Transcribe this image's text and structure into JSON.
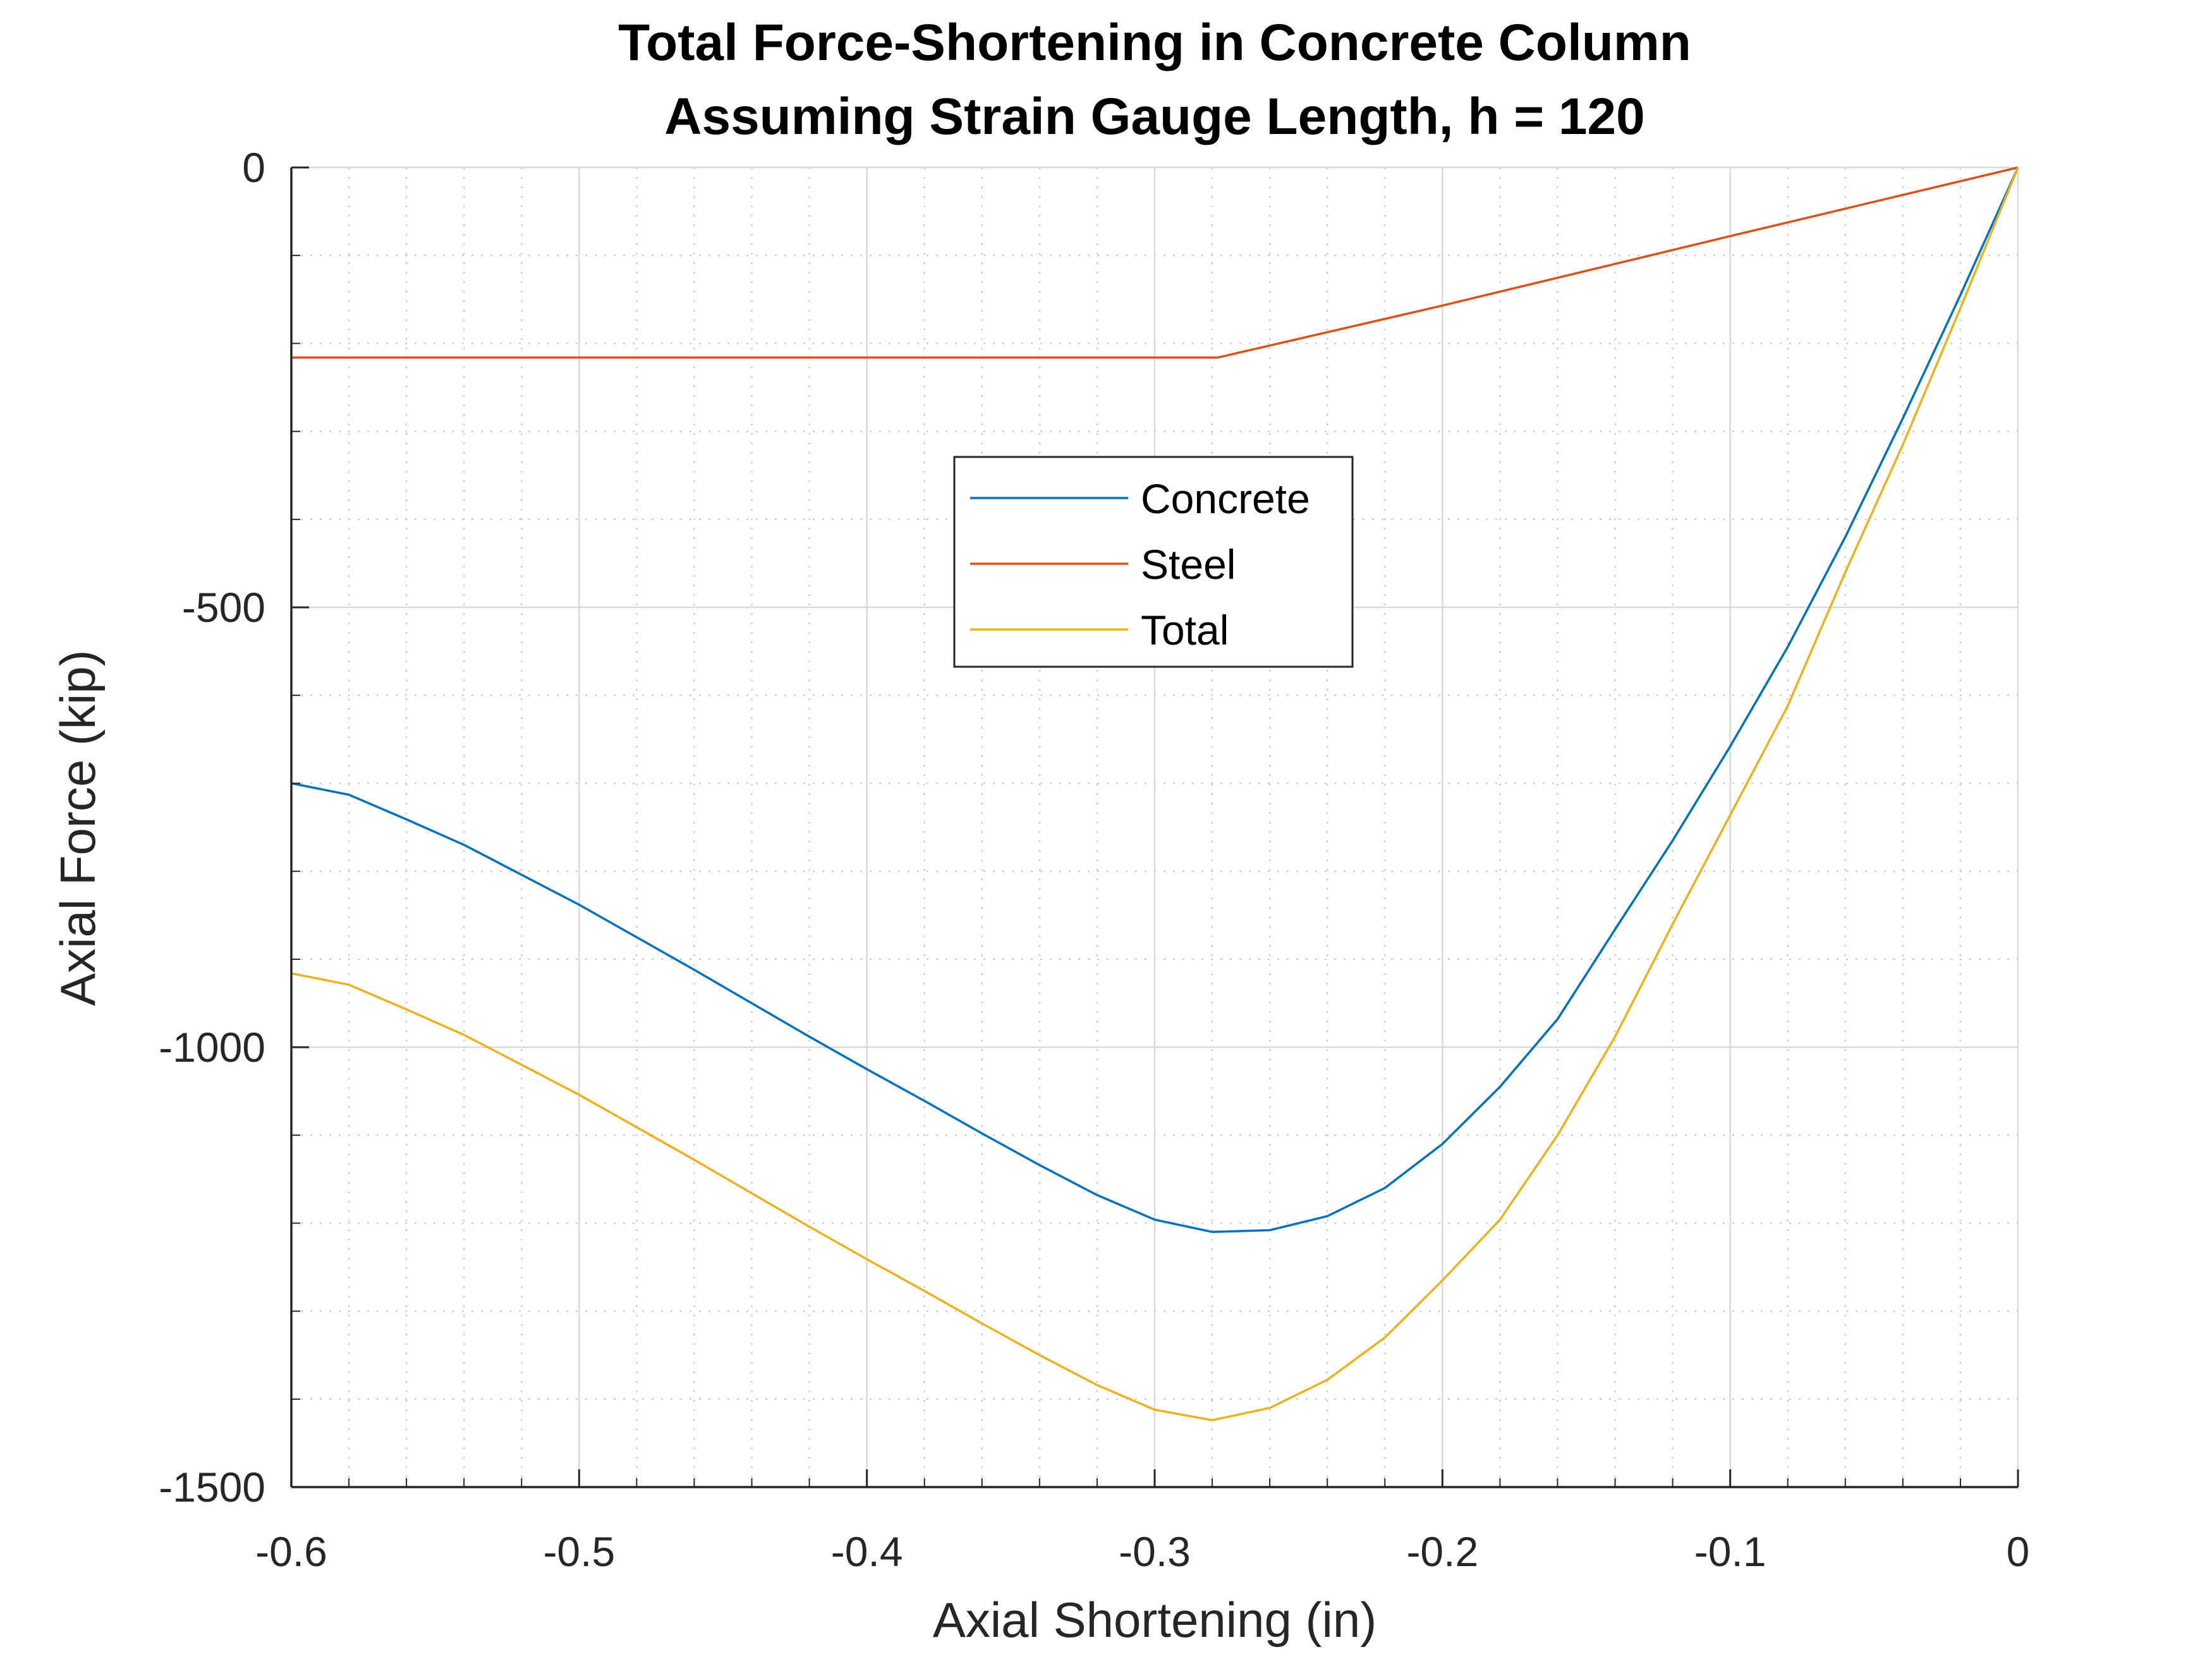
{
  "chart_data": {
    "type": "line",
    "title": "Total Force-Shortening in Concrete Column",
    "subtitle": "Assuming Strain Gauge Length, h = 120",
    "xlabel": "Axial Shortening (in)",
    "ylabel": "Axial Force (kip)",
    "xlim": [
      -0.6,
      0
    ],
    "ylim": [
      -1500,
      0
    ],
    "xticks": [
      -0.6,
      -0.5,
      -0.4,
      -0.3,
      -0.2,
      -0.1,
      0
    ],
    "xtick_labels": [
      "-0.6",
      "-0.5",
      "-0.4",
      "-0.3",
      "-0.2",
      "-0.1",
      "0"
    ],
    "yticks": [
      0,
      -500,
      -1000,
      -1500
    ],
    "ytick_labels": [
      "0",
      "-500",
      "-1000",
      "-1500"
    ],
    "xminor_step": 0.02,
    "yminor_step": 100,
    "grid": true,
    "minor_grid": true,
    "legend_position": "center",
    "series": [
      {
        "name": "Concrete",
        "color": "#0072BD",
        "x": [
          0,
          -0.02,
          -0.04,
          -0.06,
          -0.08,
          -0.1,
          -0.12,
          -0.14,
          -0.16,
          -0.18,
          -0.2,
          -0.22,
          -0.24,
          -0.26,
          -0.28,
          -0.3,
          -0.32,
          -0.34,
          -0.36,
          -0.38,
          -0.4,
          -0.42,
          -0.44,
          -0.46,
          -0.48,
          -0.5,
          -0.52,
          -0.54,
          -0.56,
          -0.58,
          -0.6
        ],
        "y": [
          0,
          -145,
          -285,
          -420,
          -545,
          -658,
          -765,
          -866,
          -968,
          -1045,
          -1110,
          -1160,
          -1192,
          -1208,
          -1210,
          -1196,
          -1168,
          -1134,
          -1098,
          -1061,
          -1025,
          -988,
          -950,
          -912,
          -875,
          -838,
          -804,
          -770,
          -741,
          -713,
          -700
        ]
      },
      {
        "name": "Steel",
        "color": "#D95319",
        "x": [
          0,
          -0.1,
          -0.2,
          -0.278,
          -0.3,
          -0.4,
          -0.5,
          -0.6
        ],
        "y": [
          0,
          -78,
          -157,
          -216,
          -216,
          -216,
          -216,
          -216
        ]
      },
      {
        "name": "Total",
        "color": "#EDB120",
        "x": [
          0,
          -0.02,
          -0.04,
          -0.06,
          -0.08,
          -0.1,
          -0.12,
          -0.14,
          -0.16,
          -0.18,
          -0.2,
          -0.22,
          -0.24,
          -0.26,
          -0.28,
          -0.3,
          -0.32,
          -0.34,
          -0.36,
          -0.38,
          -0.4,
          -0.42,
          -0.44,
          -0.46,
          -0.48,
          -0.5,
          -0.52,
          -0.54,
          -0.56,
          -0.58,
          -0.6
        ],
        "y": [
          0,
          -160,
          -315,
          -460,
          -612,
          -736,
          -860,
          -988,
          -1100,
          -1196,
          -1265,
          -1330,
          -1378,
          -1410,
          -1424,
          -1412,
          -1384,
          -1350,
          -1314,
          -1277,
          -1241,
          -1204,
          -1166,
          -1128,
          -1091,
          -1054,
          -1020,
          -986,
          -957,
          -929,
          -916
        ]
      }
    ]
  }
}
